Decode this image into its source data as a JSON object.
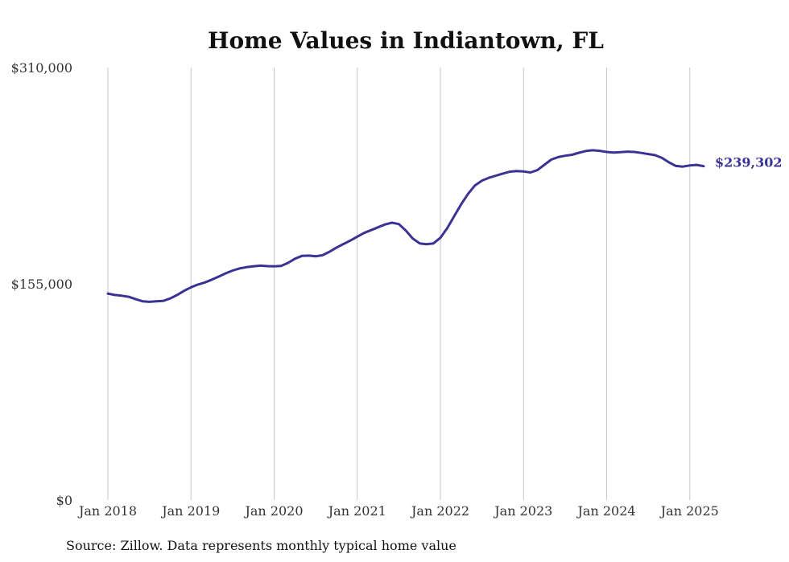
{
  "chart_data": {
    "type": "line",
    "title": "Home Values in Indiantown, FL",
    "source": "Source: Zillow. Data represents monthly typical home value",
    "xlabel": "",
    "ylabel": "",
    "x_start": "2018-01",
    "x_end": "2025-03",
    "xticks": [
      "Jan 2018",
      "Jan 2019",
      "Jan 2020",
      "Jan 2021",
      "Jan 2022",
      "Jan 2023",
      "Jan 2024",
      "Jan 2025"
    ],
    "yticks": [
      "$0",
      "$155,000",
      "$310,000"
    ],
    "ylim": [
      0,
      310000
    ],
    "grid": "vertical",
    "line_color": "#3b3393",
    "end_value_label": "$239,302",
    "series": [
      {
        "values": [
          [
            0,
            148000
          ],
          [
            1,
            147000
          ],
          [
            2,
            146500
          ],
          [
            3,
            145700
          ],
          [
            4,
            144000
          ],
          [
            5,
            142500
          ],
          [
            6,
            142100
          ],
          [
            7,
            142500
          ],
          [
            8,
            142800
          ],
          [
            9,
            144500
          ],
          [
            10,
            147000
          ],
          [
            11,
            150000
          ],
          [
            12,
            152500
          ],
          [
            13,
            154500
          ],
          [
            14,
            156000
          ],
          [
            15,
            158000
          ],
          [
            16,
            160200
          ],
          [
            17,
            162500
          ],
          [
            18,
            164500
          ],
          [
            19,
            166000
          ],
          [
            20,
            166900
          ],
          [
            21,
            167500
          ],
          [
            22,
            168000
          ],
          [
            23,
            167700
          ],
          [
            24,
            167500
          ],
          [
            25,
            167800
          ],
          [
            26,
            170000
          ],
          [
            27,
            173000
          ],
          [
            28,
            175000
          ],
          [
            29,
            175200
          ],
          [
            30,
            174700
          ],
          [
            31,
            175500
          ],
          [
            32,
            178000
          ],
          [
            33,
            181000
          ],
          [
            34,
            183500
          ],
          [
            35,
            186000
          ],
          [
            36,
            188800
          ],
          [
            37,
            191500
          ],
          [
            38,
            193500
          ],
          [
            39,
            195500
          ],
          [
            40,
            197500
          ],
          [
            41,
            198800
          ],
          [
            42,
            197800
          ],
          [
            43,
            193200
          ],
          [
            44,
            187500
          ],
          [
            45,
            184000
          ],
          [
            46,
            183400
          ],
          [
            47,
            184000
          ],
          [
            48,
            188000
          ],
          [
            49,
            195000
          ],
          [
            50,
            203500
          ],
          [
            51,
            212000
          ],
          [
            52,
            219500
          ],
          [
            53,
            225500
          ],
          [
            54,
            229000
          ],
          [
            55,
            231000
          ],
          [
            56,
            232500
          ],
          [
            57,
            234000
          ],
          [
            58,
            235300
          ],
          [
            59,
            235800
          ],
          [
            60,
            235500
          ],
          [
            61,
            234800
          ],
          [
            62,
            236500
          ],
          [
            63,
            240300
          ],
          [
            64,
            244000
          ],
          [
            65,
            245800
          ],
          [
            66,
            246800
          ],
          [
            67,
            247500
          ],
          [
            68,
            248900
          ],
          [
            69,
            250200
          ],
          [
            70,
            250700
          ],
          [
            71,
            250300
          ],
          [
            72,
            249500
          ],
          [
            73,
            249100
          ],
          [
            74,
            249400
          ],
          [
            75,
            249700
          ],
          [
            76,
            249500
          ],
          [
            77,
            248800
          ],
          [
            78,
            248000
          ],
          [
            79,
            247200
          ],
          [
            80,
            245200
          ],
          [
            81,
            242000
          ],
          [
            82,
            239500
          ],
          [
            83,
            239000
          ],
          [
            84,
            239800
          ],
          [
            85,
            240200
          ],
          [
            86,
            239302
          ]
        ]
      }
    ]
  }
}
